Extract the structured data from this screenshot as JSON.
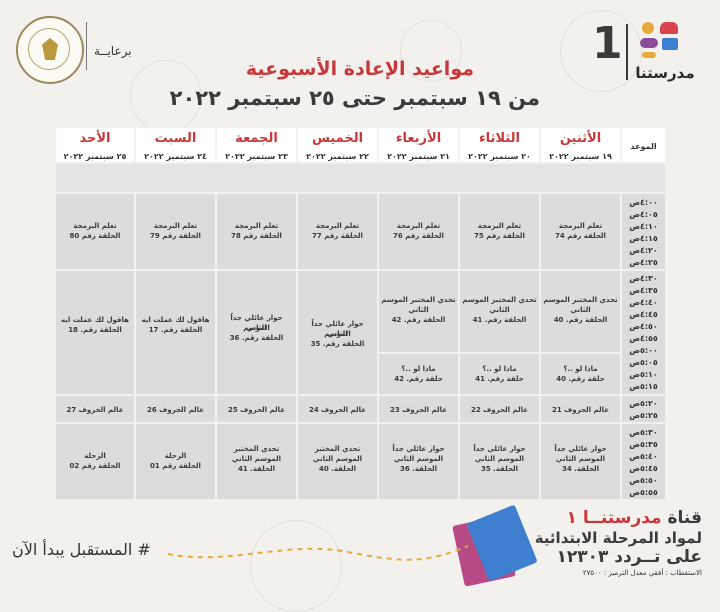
{
  "header": {
    "logo_number": "1",
    "logo_text": "مدرستنا",
    "title": "مواعيد الإعادة الأسبوعية",
    "subtitle": "من ١٩ سبتمبر حتى ٢٥ سبتمبر ٢٠٢٢",
    "sponsor": "برعايــة"
  },
  "table": {
    "time_header": "الموعد",
    "days": [
      {
        "name": "الأثنين",
        "date": "١٩ سبتمبر ٢٠٢٢"
      },
      {
        "name": "الثلاثاء",
        "date": "٢٠ سبتمبر ٢٠٢٢"
      },
      {
        "name": "الأربعاء",
        "date": "٢١ سبتمبر ٢٠٢٢"
      },
      {
        "name": "الخميس",
        "date": "٢٢ سبتمبر ٢٠٢٢"
      },
      {
        "name": "الجمعة",
        "date": "٢٣ سبتمبر ٢٠٢٢"
      },
      {
        "name": "السبت",
        "date": "٢٤ سبتمبر ٢٠٢٢"
      },
      {
        "name": "الأحد",
        "date": "٢٥ سبتمبر ٢٠٢٢"
      }
    ],
    "times_a": [
      "٤:٠٠ص",
      "٤:٠٥ص",
      "٤:١٠ص",
      "٤:١٥ص",
      "٤:٢٠ص",
      "٤:٢٥ص"
    ],
    "times_b": [
      "٤:٣٠ص",
      "٤:٣٥ص",
      "٤:٤٠ص",
      "٤:٤٥ص",
      "٤:٥٠ص",
      "٤:٥٥ص",
      "٥:٠٠ص",
      "٥:٠٥ص",
      "٥:١٠ص",
      "٥:١٥ص"
    ],
    "times_c": [
      "٥:٢٠ص",
      "٥:٢٥ص"
    ],
    "times_d": [
      "٥:٣٠ص",
      "٥:٣٥ص",
      "٥:٤٠ص",
      "٥:٤٥ص",
      "٥:٥٠ص",
      "٥:٥٥ص"
    ],
    "row1": [
      [
        "تعلم البرمجة",
        "الحلقة رقم 74"
      ],
      [
        "تعلم البرمجة",
        "الحلقة رقم 75"
      ],
      [
        "تعلم البرمجة",
        "الحلقة رقم 76"
      ],
      [
        "تعلم البرمجة",
        "الحلقة رقم 77"
      ],
      [
        "تعلم البرمجة",
        "الحلقة رقم 78"
      ],
      [
        "تعلم البرمجة",
        "الحلقة رقم 79"
      ],
      [
        "تعلم البرمجة",
        "الحلقة رقم 80"
      ]
    ],
    "row2_top": [
      [
        "تحدي المختبر الموسم",
        "الثاني",
        "الحلقة رقم. 40"
      ],
      [
        "تحدي المختبر الموسم",
        "الثاني",
        "الحلقة رقم. 41"
      ],
      [
        "تحدي المختبر الموسم",
        "الثاني",
        "الحلقة رقم. 42"
      ]
    ],
    "row2_bottom": [
      [
        "ماذا لو ..؟",
        "حلقة رقم. 40"
      ],
      [
        "ماذا لو ..؟",
        "حلقة رقم. 41"
      ],
      [
        "ماذا لو ..؟",
        "حلقة رقم. 42"
      ]
    ],
    "row2_other": [
      [
        "حوار عائلي جداً الموسم",
        "الثاني",
        "الحلقة رقم. 35"
      ],
      [
        "حوار عائلي جداً الموسم",
        "الثاني",
        "الحلقة رقم. 36"
      ],
      [
        "هاقول لك عملت ايه",
        "الحلقة رقم. 17"
      ],
      [
        "هاقول لك عملت ايه",
        "الحلقة رقم. 18"
      ]
    ],
    "row3": [
      "عالم الحروف 21",
      "عالم الحروف 22",
      "عالم الحروف 23",
      "عالم الحروف 24",
      "عالم الحروف 25",
      "عالم الحروف 26",
      "عالم الحروف 27"
    ],
    "row4": [
      [
        "حوار عائلي جداً",
        "الموسم الثاني",
        "الحلقة. 34"
      ],
      [
        "حوار عائلي جداً",
        "الموسم الثاني",
        "الحلقة. 35"
      ],
      [
        "حوار عائلي جداً",
        "الموسم الثاني",
        "الحلقة. 36"
      ],
      [
        "تحدي المختبر",
        "الموسم الثاني",
        "الحلقة. 40"
      ],
      [
        "تحدي المختبر",
        "الموسم الثاني",
        "الحلقة. 41"
      ],
      [
        "الرحلة",
        "الحلقة رقم 01"
      ],
      [
        "الرحلة",
        "الحلقة رقم 02"
      ]
    ]
  },
  "footer": {
    "channel_prefix": "قناة",
    "channel_name": "مدرستنــا ١",
    "line2": "لمواد المرحلة الابتدائية",
    "line3": "على تــردد ١٢٣٠٣",
    "line4": "الاستقطاب : أفقي معدل الترميز : ٢٧٥٠٠",
    "hashtag": "# المستقبل يبدأ الآن"
  }
}
